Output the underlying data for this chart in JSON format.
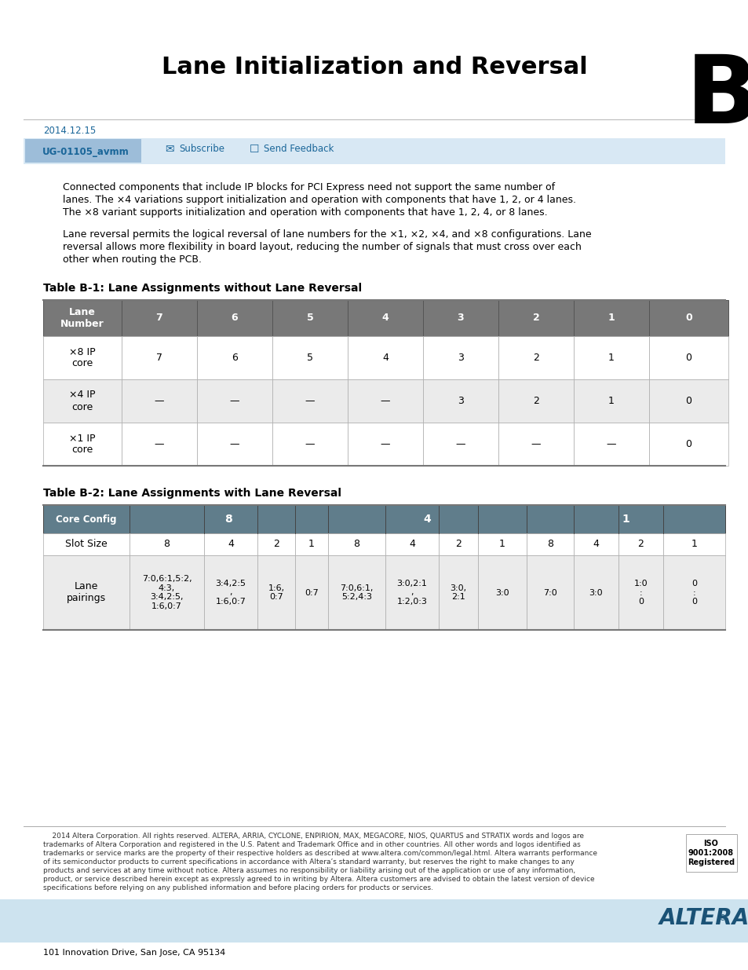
{
  "title": "Lane Initialization and Reversal",
  "chapter_letter": "B",
  "date": "2014.12.15",
  "doc_id": "UG-01105_avmm",
  "subscribe": "Subscribe",
  "send_feedback": "Send Feedback",
  "para1_lines": [
    "Connected components that include IP blocks for PCI Express need not support the same number of",
    "lanes. The ×4 variations support initialization and operation with components that have 1, 2, or 4 lanes.",
    "The ×8 variant supports initialization and operation with components that have 1, 2, 4, or 8 lanes."
  ],
  "para2_lines": [
    "Lane reversal permits the logical reversal of lane numbers for the ×1, ×2, ×4, and ×8 configurations. Lane",
    "reversal allows more flexibility in board layout, reducing the number of signals that must cross over each",
    "other when routing the PCB."
  ],
  "table1_title": "Table B-1: Lane Assignments without Lane Reversal",
  "table2_title": "Table B-2: Lane Assignments with Lane Reversal",
  "header_bg": "#787878",
  "header_text": "#ffffff",
  "row_bg_light": "#ebebeb",
  "row_bg_white": "#ffffff",
  "border_color": "#999999",
  "table2_header_bg": "#607d8b",
  "footer_text_lines": [
    "    2014 Altera Corporation. All rights reserved. ALTERA, ARRIA, CYCLONE, ENPIRION, MAX, MEGACORE, NIOS, QUARTUS and STRATIX words and logos are",
    "trademarks of Altera Corporation and registered in the U.S. Patent and Trademark Office and in other countries. All other words and logos identified as",
    "trademarks or service marks are the property of their respective holders as described at www.altera.com/common/legal.html. Altera warrants performance",
    "of its semiconductor products to current specifications in accordance with Altera’s standard warranty, but reserves the right to make changes to any",
    "products and services at any time without notice. Altera assumes no responsibility or liability arising out of the application or use of any information,",
    "product, or service described herein except as expressly agreed to in writing by Altera. Altera customers are advised to obtain the latest version of device",
    "specifications before relying on any published information and before placing orders for products or services."
  ],
  "address": "101 Innovation Drive, San Jose, CA 95134",
  "iso_text": "ISO\n9001:2008\nRegistered",
  "bottom_bar_color": "#c8dce8"
}
